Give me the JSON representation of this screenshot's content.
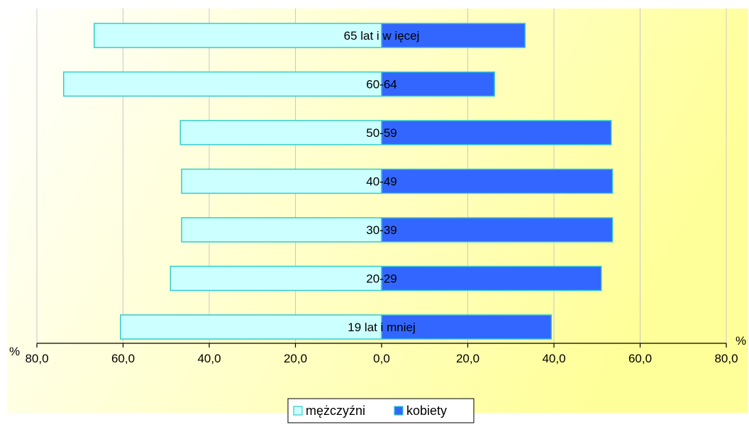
{
  "chart_data": {
    "type": "bar",
    "orientation": "horizontal",
    "title": "",
    "categories": [
      "65 lat i w ięcej",
      "60-64",
      "50-59",
      "40-49",
      "30-39",
      "20-29",
      "19 lat i mniej"
    ],
    "series": [
      {
        "name": "mężczyźni",
        "values": [
          66.7,
          73.8,
          46.7,
          46.4,
          46.4,
          49.0,
          60.6
        ],
        "color": "#ccffff",
        "direction": "left"
      },
      {
        "name": "kobiety",
        "values": [
          33.3,
          26.2,
          53.3,
          53.6,
          53.6,
          51.0,
          39.4
        ],
        "color": "#3366ff",
        "direction": "right"
      }
    ],
    "xlim": [
      -80,
      80
    ],
    "tick_values": [
      -80,
      -60,
      -40,
      -20,
      0,
      20,
      40,
      60,
      80
    ],
    "tick_labels": [
      "80,0",
      "60,0",
      "40,0",
      "20,0",
      "0,0",
      "20,0",
      "40,0",
      "60,0",
      "80,0"
    ],
    "xlabel_left": "%",
    "xlabel_right": "%",
    "grid": true,
    "legend_position": "bottom",
    "bar_border_color": "#33cccc",
    "gridline_color": "#c8c8c8",
    "background_gradient": [
      "#ffffff",
      "#ffff99"
    ]
  }
}
